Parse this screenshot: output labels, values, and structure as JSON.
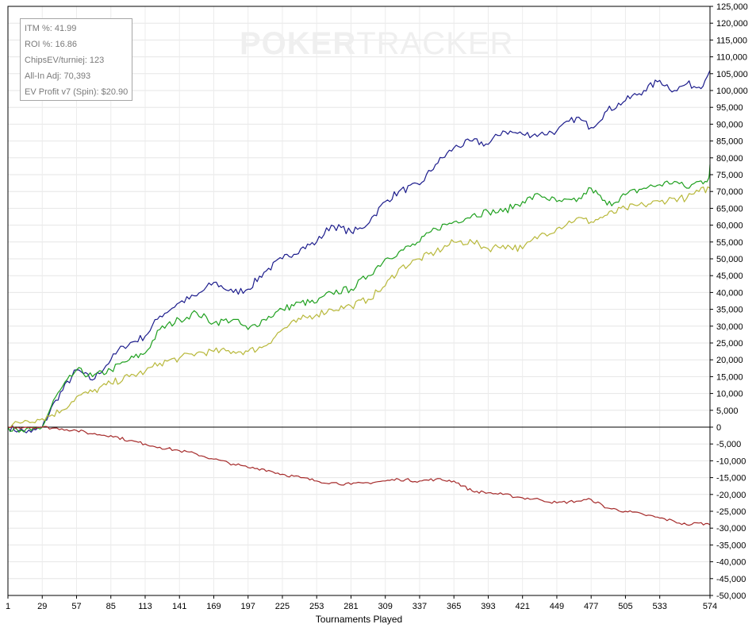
{
  "watermark": {
    "bold": "POKER",
    "light": "TRACKER"
  },
  "stats": [
    {
      "label": "ITM %: 41.99"
    },
    {
      "label": "ROI %: 16.86"
    },
    {
      "label": "ChipsEV/turniej: 123"
    },
    {
      "label": "All-In Adj: 70,393"
    },
    {
      "label": "EV Profit v7 (Spin): $20.90"
    }
  ],
  "chart_data": {
    "type": "line",
    "xlabel": "Tournaments Played",
    "ylabel": "",
    "xlim": [
      1,
      574
    ],
    "ylim": [
      -50000,
      125000
    ],
    "grid": true,
    "x_ticks": [
      "1",
      "29",
      "57",
      "85",
      "113",
      "141",
      "169",
      "197",
      "225",
      "253",
      "281",
      "309",
      "337",
      "365",
      "393",
      "421",
      "449",
      "477",
      "505",
      "533",
      "574"
    ],
    "y_ticks": [
      "125,000",
      "120,000",
      "115,000",
      "110,000",
      "105,000",
      "100,000",
      "95,000",
      "90,000",
      "85,000",
      "80,000",
      "75,000",
      "70,000",
      "65,000",
      "60,000",
      "55,000",
      "50,000",
      "45,000",
      "40,000",
      "35,000",
      "30,000",
      "25,000",
      "20,000",
      "15,000",
      "10,000",
      "5,000",
      "0",
      "-5,000",
      "-10,000",
      "-15,000",
      "-20,000",
      "-25,000",
      "-30,000",
      "-35,000",
      "-40,000",
      "-45,000",
      "-50,000"
    ],
    "series": [
      {
        "color": "#1c1c8c",
        "x": [
          1,
          10,
          20,
          29,
          40,
          57,
          70,
          85,
          95,
          113,
          125,
          141,
          155,
          169,
          185,
          197,
          210,
          225,
          240,
          253,
          265,
          281,
          290,
          300,
          309,
          320,
          337,
          350,
          365,
          380,
          393,
          405,
          421,
          435,
          449,
          465,
          477,
          490,
          505,
          520,
          533,
          545,
          555,
          565,
          570,
          574
        ],
        "values": [
          0,
          -1000,
          -1500,
          0,
          8000,
          17000,
          14000,
          20000,
          24000,
          27000,
          33000,
          37000,
          39000,
          43000,
          40000,
          41000,
          46000,
          50000,
          53000,
          55000,
          60000,
          58000,
          59000,
          63000,
          67000,
          70000,
          72000,
          78000,
          83000,
          85000,
          84000,
          88000,
          87000,
          87000,
          88000,
          92000,
          89000,
          94000,
          97000,
          100000,
          103000,
          100000,
          102000,
          101000,
          103000,
          106000
        ]
      },
      {
        "color": "#1fa01f",
        "x": [
          1,
          10,
          20,
          29,
          40,
          57,
          70,
          85,
          100,
          113,
          125,
          141,
          155,
          169,
          185,
          197,
          210,
          225,
          240,
          253,
          265,
          281,
          295,
          309,
          320,
          337,
          350,
          365,
          380,
          393,
          405,
          421,
          435,
          449,
          465,
          477,
          490,
          505,
          520,
          533,
          545,
          555,
          565,
          570,
          573,
          574
        ],
        "values": [
          0,
          -1500,
          -1000,
          0,
          9000,
          17000,
          15000,
          17000,
          20000,
          22000,
          29000,
          32000,
          34000,
          31000,
          32000,
          29000,
          32000,
          35000,
          37000,
          37000,
          40000,
          41000,
          45000,
          50000,
          52000,
          55000,
          59000,
          61000,
          63000,
          64000,
          64000,
          67000,
          69000,
          67000,
          67000,
          71000,
          66000,
          69000,
          71000,
          72000,
          73000,
          71000,
          73000,
          73000,
          74000,
          78000
        ]
      },
      {
        "color": "#b8b83a",
        "x": [
          1,
          15,
          29,
          45,
          57,
          70,
          85,
          100,
          113,
          125,
          141,
          155,
          169,
          185,
          197,
          210,
          225,
          240,
          253,
          265,
          281,
          295,
          309,
          320,
          337,
          350,
          365,
          380,
          393,
          405,
          421,
          435,
          449,
          465,
          477,
          490,
          505,
          520,
          533,
          545,
          555,
          565,
          574
        ],
        "values": [
          0,
          2000,
          2500,
          5000,
          9000,
          10500,
          13000,
          15000,
          16500,
          19000,
          20500,
          22000,
          22500,
          22500,
          22500,
          24000,
          29000,
          32000,
          33500,
          35000,
          36000,
          38000,
          42000,
          47000,
          50000,
          52000,
          55000,
          55000,
          53000,
          54000,
          53000,
          57000,
          59000,
          62000,
          61000,
          63000,
          65000,
          66000,
          67000,
          68000,
          68000,
          70000,
          71000
        ]
      },
      {
        "color": "#a52a2a",
        "x": [
          1,
          15,
          29,
          45,
          57,
          70,
          85,
          100,
          113,
          125,
          141,
          155,
          169,
          185,
          197,
          210,
          225,
          240,
          253,
          265,
          281,
          295,
          309,
          320,
          337,
          350,
          365,
          380,
          393,
          405,
          421,
          435,
          449,
          465,
          477,
          490,
          505,
          520,
          533,
          545,
          555,
          565,
          574
        ],
        "values": [
          0,
          0,
          0,
          -500,
          -1000,
          -2000,
          -2500,
          -4000,
          -5000,
          -6000,
          -7000,
          -8000,
          -9500,
          -11000,
          -12000,
          -12500,
          -14000,
          -15000,
          -16000,
          -16500,
          -17000,
          -16500,
          -16000,
          -15500,
          -16000,
          -15500,
          -16000,
          -19000,
          -19500,
          -20000,
          -21000,
          -21500,
          -22500,
          -22000,
          -21500,
          -24000,
          -25000,
          -26000,
          -27000,
          -28000,
          -29000,
          -28500,
          -29000
        ]
      }
    ]
  }
}
